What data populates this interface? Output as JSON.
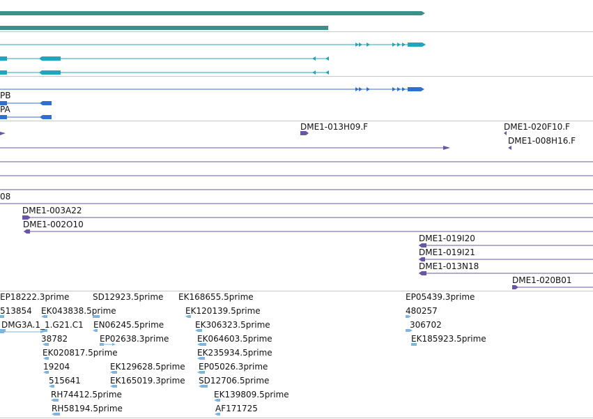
{
  "colors": {
    "teal_dark": "#3e8f8a",
    "cyan": "#1fa6be",
    "blue": "#2f6fd0",
    "purple": "#6a55a6",
    "light_blue": "#7fb5dc",
    "separator": "#c7c7c7",
    "background": "#ffffff"
  },
  "tracks": {
    "gene_models": {
      "rows": 2
    },
    "transcripts_cyan": {
      "rows": 3
    },
    "transcripts_blue": {
      "labels": {
        "pb": "PB",
        "pa": "PA"
      }
    },
    "clones": {
      "labels": {
        "dme1_013h09_f": "DME1-013H09.F",
        "dme1_020f10_f": "DME1-020F10.F",
        "dme1_008h16_f": "DME1-008H16.F",
        "partial_08": "08",
        "dme1_003a22": "DME1-003A22",
        "dme1_002o10": "DME1-002O10",
        "dme1_019i20": "DME1-019I20",
        "dme1_019i21": "DME1-019I21",
        "dme1_013n18": "DME1-013N18",
        "dme1_020b01": "DME1-020B01"
      }
    },
    "ests": {
      "labels": {
        "ep18222_3prime": "EP18222.3prime",
        "n513854": "513854",
        "dmg3a": "DMG3A.1_1.G21.C1",
        "ek043838": "EK043838.5prime",
        "sd12923": "SD12923.5prime",
        "en06245": "EN06245.5prime",
        "ep02638": "EP02638.3prime",
        "n38782": "38782",
        "ek020817": "EK020817.5prime",
        "n19204": "19204",
        "n515641": "515641",
        "rh74412": "RH74412.5prime",
        "rh58194": "RH58194.5prime",
        "ek129628": "EK129628.5prime",
        "ek165019": "EK165019.3prime",
        "ek168655": "EK168655.5prime",
        "ek120139": "EK120139.5prime",
        "ek306323": "EK306323.5prime",
        "ek064603": "EK064603.5prime",
        "ek235934": "EK235934.5prime",
        "ep05026": "EP05026.3prime",
        "sd12706": "SD12706.5prime",
        "ek139809": "EK139809.5prime",
        "af171725": "AF171725",
        "ep05439": "EP05439.3prime",
        "n480257": "480257",
        "n306702": "306702",
        "ek185923": "EK185923.5prime"
      }
    }
  }
}
